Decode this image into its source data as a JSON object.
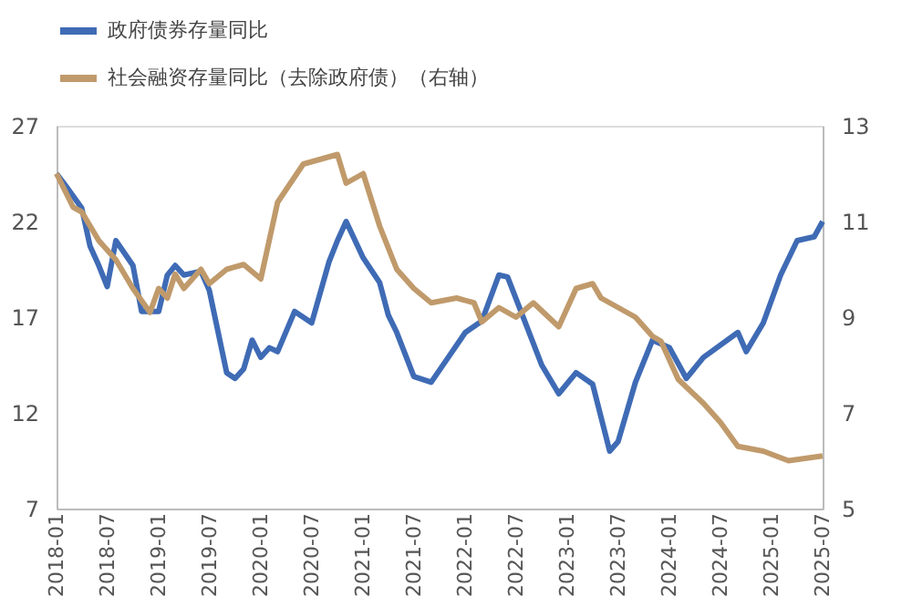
{
  "chart_data": {
    "type": "line",
    "legend": "top",
    "grid": false,
    "marker": "none",
    "line_style": "solid",
    "xlim": [
      "2018-01",
      "2025-07"
    ],
    "xticks": [
      "2018-01",
      "2018-07",
      "2019-01",
      "2019-07",
      "2020-01",
      "2020-07",
      "2021-01",
      "2021-07",
      "2022-01",
      "2022-07",
      "2023-01",
      "2023-07",
      "2024-01",
      "2024-07",
      "2025-01",
      "2025-07"
    ],
    "ylim": [
      7,
      27
    ],
    "yticks": [
      7,
      12,
      17,
      22,
      27
    ],
    "y2lim": [
      5,
      13
    ],
    "y2ticks": [
      5,
      7,
      9,
      11,
      13
    ],
    "series": [
      {
        "name": "政府债券存量同比",
        "color": "#3f6bb5",
        "x": [
          "2018-01",
          "2018-02",
          "2018-04",
          "2018-05",
          "2018-06",
          "2018-07",
          "2018-08",
          "2018-10",
          "2018-11",
          "2019-01",
          "2019-02",
          "2019-03",
          "2019-04",
          "2019-06",
          "2019-07",
          "2019-09",
          "2019-10",
          "2019-11",
          "2019-12",
          "2020-01",
          "2020-02",
          "2020-03",
          "2020-05",
          "2020-07",
          "2020-09",
          "2020-10",
          "2020-11",
          "2021-01",
          "2021-03",
          "2021-04",
          "2021-05",
          "2021-07",
          "2021-09",
          "2021-11",
          "2022-01",
          "2022-03",
          "2022-05",
          "2022-06",
          "2022-08",
          "2022-10",
          "2022-12",
          "2023-02",
          "2023-04",
          "2023-06",
          "2023-07",
          "2023-09",
          "2023-11",
          "2024-01",
          "2024-03",
          "2024-05",
          "2024-09",
          "2024-10",
          "2024-12",
          "2025-02",
          "2025-04",
          "2025-06",
          "2025-07"
        ],
        "values": [
          24.5,
          23.9,
          22.7,
          20.7,
          19.7,
          18.6,
          21.0,
          19.7,
          17.3,
          17.3,
          19.2,
          19.7,
          19.2,
          19.4,
          18.4,
          14.1,
          13.8,
          14.3,
          15.8,
          14.9,
          15.4,
          15.2,
          17.3,
          16.7,
          19.9,
          21.0,
          22.0,
          20.1,
          18.8,
          17.1,
          16.2,
          13.9,
          13.6,
          14.9,
          16.2,
          16.8,
          19.2,
          19.1,
          16.8,
          14.5,
          13.0,
          14.1,
          13.5,
          10.0,
          10.5,
          13.6,
          15.8,
          15.4,
          13.8,
          14.9,
          16.2,
          15.2,
          16.7,
          19.2,
          21.0,
          21.2,
          22.0
        ]
      },
      {
        "name": "社会融资存量同比（去除政府债）（右轴）",
        "color": "#c09a6b",
        "axis": "y2",
        "x": [
          "2018-01",
          "2018-03",
          "2018-04",
          "2018-06",
          "2018-08",
          "2018-10",
          "2018-12",
          "2019-01",
          "2019-02",
          "2019-03",
          "2019-04",
          "2019-06",
          "2019-07",
          "2019-09",
          "2019-11",
          "2020-01",
          "2020-03",
          "2020-06",
          "2020-10",
          "2020-11",
          "2021-01",
          "2021-03",
          "2021-05",
          "2021-07",
          "2021-09",
          "2021-12",
          "2022-02",
          "2022-03",
          "2022-05",
          "2022-07",
          "2022-09",
          "2022-12",
          "2023-02",
          "2023-04",
          "2023-05",
          "2023-09",
          "2023-11",
          "2023-12",
          "2024-02",
          "2024-05",
          "2024-07",
          "2024-09",
          "2024-12",
          "2025-03",
          "2025-07"
        ],
        "values": [
          12.0,
          11.3,
          11.2,
          10.6,
          10.2,
          9.6,
          9.1,
          9.6,
          9.4,
          9.9,
          9.6,
          10.0,
          9.7,
          10.0,
          10.1,
          9.8,
          11.4,
          12.2,
          12.4,
          11.8,
          12.0,
          10.9,
          10.0,
          9.6,
          9.3,
          9.4,
          9.3,
          8.9,
          9.2,
          9.0,
          9.3,
          8.8,
          9.6,
          9.7,
          9.4,
          9.0,
          8.6,
          8.5,
          7.7,
          7.2,
          6.8,
          6.3,
          6.2,
          6.0,
          6.1
        ]
      }
    ]
  }
}
